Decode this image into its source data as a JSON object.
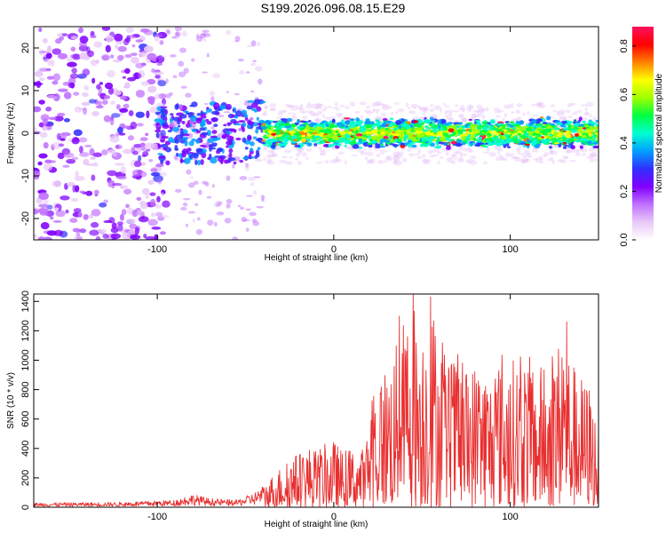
{
  "figure": {
    "title": "S199.2026.096.08.15.E29"
  },
  "chart_data": [
    {
      "type": "heatmap",
      "title": "",
      "xlabel": "Height of straight line (km)",
      "ylabel": "Frequency (Hz)",
      "xlim": [
        -170,
        150
      ],
      "ylim": [
        -25,
        25
      ],
      "xticks": [
        -100,
        0,
        100
      ],
      "xtick_labels": [
        "-100",
        "0",
        "100"
      ],
      "yticks": [
        -20,
        -10,
        0,
        10,
        20
      ],
      "ytick_labels": [
        "-20",
        "-10",
        "0",
        "10",
        "20"
      ],
      "colorbar": {
        "label": "Normalized spectral amplitude",
        "range": [
          0,
          0.88
        ],
        "ticks": [
          0,
          0.2,
          0.4,
          0.6,
          0.8
        ],
        "tick_labels": [
          "0.0",
          "0.2",
          "0.4",
          "0.6",
          "0.8"
        ],
        "colormap": [
          "#ffffff",
          "#e8c8f8",
          "#c070ff",
          "#8000ff",
          "#3030ff",
          "#00a0ff",
          "#00ffd0",
          "#00ff40",
          "#a0ff00",
          "#ffff00",
          "#ff8000",
          "#ff0000",
          "#ff1060"
        ]
      },
      "structure": {
        "noise_region_x": [
          -170,
          -100
        ],
        "burst_region_x": [
          -100,
          -40
        ],
        "band_region_x": [
          -40,
          150
        ],
        "band_center_hz": 0,
        "band_halfwidth_hz": 3
      }
    },
    {
      "type": "line",
      "title": "",
      "xlabel": "Height of straight line (km)",
      "ylabel": "SNR (10 * v/v)",
      "xlim": [
        -170,
        150
      ],
      "ylim": [
        0,
        1450
      ],
      "xticks": [
        -100,
        0,
        100
      ],
      "xtick_labels": [
        "-100",
        "0",
        "100"
      ],
      "yticks": [
        0,
        200,
        400,
        600,
        800,
        1000,
        1200,
        1400
      ],
      "ytick_labels": [
        "0",
        "200",
        "400",
        "600",
        "800",
        "1000",
        "1200",
        "1400"
      ],
      "series": [
        {
          "name": "SNR",
          "color": "#e83030",
          "envelope": {
            "x": [
              -170,
              -120,
              -90,
              -80,
              -70,
              -55,
              -45,
              -40,
              -35,
              -30,
              -25,
              -20,
              -15,
              -10,
              -5,
              0,
              5,
              10,
              15,
              18,
              20,
              25,
              30,
              35,
              40,
              45,
              50,
              55,
              60,
              65,
              70,
              75,
              80,
              85,
              90,
              95,
              100,
              105,
              110,
              115,
              120,
              125,
              130,
              135,
              140,
              145,
              150
            ],
            "y": [
              30,
              35,
              50,
              90,
              60,
              50,
              100,
              150,
              220,
              280,
              330,
              380,
              420,
              400,
              430,
              460,
              380,
              400,
              420,
              380,
              700,
              900,
              1000,
              1100,
              1300,
              1450,
              1250,
              1430,
              1200,
              1000,
              1050,
              950,
              1000,
              1000,
              900,
              1100,
              1000,
              1050,
              1050,
              950,
              1000,
              1050,
              1250,
              1000,
              900,
              850,
              550
            ]
          },
          "peaks": [
            {
              "x": 45,
              "y": 1450
            },
            {
              "x": 55,
              "y": 1430
            },
            {
              "x": 132,
              "y": 1260
            },
            {
              "x": 37,
              "y": 1300
            }
          ]
        }
      ]
    }
  ]
}
